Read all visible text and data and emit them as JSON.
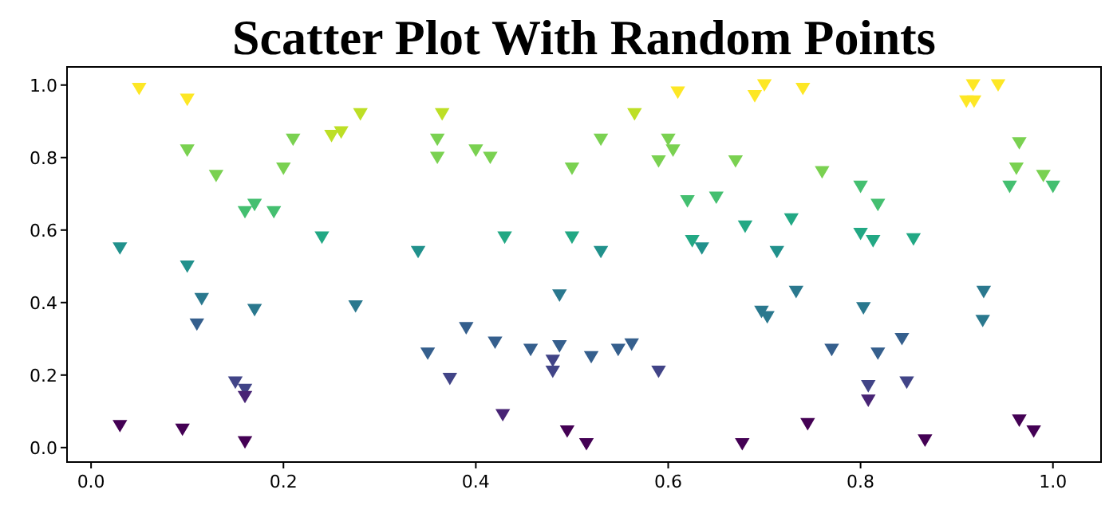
{
  "chart_data": {
    "type": "scatter",
    "title": "Scatter Plot With Random Points",
    "marker": "triangle",
    "xlim": [
      -0.025,
      1.05
    ],
    "ylim": [
      -0.04,
      1.05
    ],
    "xticks": [
      {
        "value": 0,
        "label": "0.0"
      },
      {
        "value": 0.2,
        "label": "0.2"
      },
      {
        "value": 0.4,
        "label": "0.4"
      },
      {
        "value": 0.6,
        "label": "0.6"
      },
      {
        "value": 0.8,
        "label": "0.8"
      },
      {
        "value": 1,
        "label": "1.0"
      }
    ],
    "yticks": [
      {
        "value": 0,
        "label": "0.0"
      },
      {
        "value": 0.2,
        "label": "0.2"
      },
      {
        "value": 0.4,
        "label": "0.4"
      },
      {
        "value": 0.6,
        "label": "0.6"
      },
      {
        "value": 0.8,
        "label": "0.8"
      },
      {
        "value": 1,
        "label": "1.0"
      }
    ],
    "series": [
      {
        "x": [
          0.05,
          0.1,
          0.1,
          0.13,
          0.16,
          0.17,
          0.19,
          0.2,
          0.21,
          0.25,
          0.26,
          0.28,
          0.03,
          0.1,
          0.115,
          0.11,
          0.17,
          0.24,
          0.34,
          0.275,
          0.15,
          0.16,
          0.16,
          0.03,
          0.095,
          0.16,
          0.365,
          0.36,
          0.36,
          0.4,
          0.415,
          0.5,
          0.53,
          0.565,
          0.61,
          0.6,
          0.605,
          0.59,
          0.67,
          0.62,
          0.65,
          0.68,
          0.43,
          0.5,
          0.53,
          0.625,
          0.635,
          0.487,
          0.39,
          0.35,
          0.42,
          0.457,
          0.487,
          0.48,
          0.48,
          0.52,
          0.548,
          0.562,
          0.59,
          0.373,
          0.428,
          0.495,
          0.515,
          0.677,
          0.69,
          0.7,
          0.74,
          0.917,
          0.91,
          0.918,
          0.943,
          0.965,
          0.962,
          0.955,
          0.99,
          1.0,
          0.76,
          0.8,
          0.818,
          0.728,
          0.8,
          0.813,
          0.855,
          0.713,
          0.733,
          0.697,
          0.703,
          0.803,
          0.928,
          0.927,
          0.843,
          0.77,
          0.818,
          0.848,
          0.808,
          0.808,
          0.745,
          0.867,
          0.965,
          0.98
        ],
        "values": [
          0.99,
          0.96,
          0.82,
          0.75,
          0.65,
          0.67,
          0.65,
          0.77,
          0.85,
          0.86,
          0.87,
          0.92,
          0.55,
          0.5,
          0.41,
          0.34,
          0.38,
          0.58,
          0.54,
          0.39,
          0.18,
          0.16,
          0.14,
          0.06,
          0.05,
          0.015,
          0.92,
          0.85,
          0.8,
          0.82,
          0.8,
          0.77,
          0.85,
          0.92,
          0.98,
          0.85,
          0.82,
          0.79,
          0.79,
          0.68,
          0.69,
          0.61,
          0.58,
          0.58,
          0.54,
          0.57,
          0.55,
          0.42,
          0.33,
          0.26,
          0.29,
          0.27,
          0.28,
          0.24,
          0.21,
          0.25,
          0.27,
          0.285,
          0.21,
          0.19,
          0.09,
          0.045,
          0.01,
          0.01,
          0.97,
          1.0,
          0.99,
          1.0,
          0.955,
          0.955,
          1.0,
          0.84,
          0.77,
          0.72,
          0.75,
          0.72,
          0.76,
          0.72,
          0.67,
          0.63,
          0.59,
          0.57,
          0.575,
          0.54,
          0.43,
          0.375,
          0.36,
          0.385,
          0.43,
          0.35,
          0.3,
          0.27,
          0.26,
          0.18,
          0.17,
          0.13,
          0.065,
          0.02,
          0.075,
          0.045
        ],
        "colors": [
          "#fde725",
          "#fde725",
          "#7ad151",
          "#7ad151",
          "#44bf70",
          "#44bf70",
          "#44bf70",
          "#7ad151",
          "#7ad151",
          "#bddf26",
          "#bddf26",
          "#bddf26",
          "#21918c",
          "#21918c",
          "#2a788e",
          "#355f8d",
          "#2a788e",
          "#22a884",
          "#21918c",
          "#2a788e",
          "#414487",
          "#414487",
          "#482475",
          "#440154",
          "#440154",
          "#440154",
          "#bddf26",
          "#7ad151",
          "#7ad151",
          "#7ad151",
          "#7ad151",
          "#7ad151",
          "#7ad151",
          "#bddf26",
          "#fde725",
          "#7ad151",
          "#7ad151",
          "#7ad151",
          "#7ad151",
          "#44bf70",
          "#44bf70",
          "#22a884",
          "#22a884",
          "#22a884",
          "#21918c",
          "#22a884",
          "#21918c",
          "#2a788e",
          "#355f8d",
          "#355f8d",
          "#355f8d",
          "#355f8d",
          "#355f8d",
          "#414487",
          "#414487",
          "#355f8d",
          "#355f8d",
          "#355f8d",
          "#414487",
          "#414487",
          "#482475",
          "#440154",
          "#440154",
          "#440154",
          "#fde725",
          "#fde725",
          "#fde725",
          "#fde725",
          "#fde725",
          "#fde725",
          "#fde725",
          "#7ad151",
          "#7ad151",
          "#44bf70",
          "#7ad151",
          "#44bf70",
          "#7ad151",
          "#44bf70",
          "#44bf70",
          "#22a884",
          "#22a884",
          "#22a884",
          "#22a884",
          "#21918c",
          "#2a788e",
          "#2a788e",
          "#2a788e",
          "#2a788e",
          "#2a788e",
          "#2a788e",
          "#355f8d",
          "#355f8d",
          "#355f8d",
          "#414487",
          "#414487",
          "#482475",
          "#440154",
          "#440154",
          "#440154",
          "#440154"
        ]
      }
    ]
  }
}
